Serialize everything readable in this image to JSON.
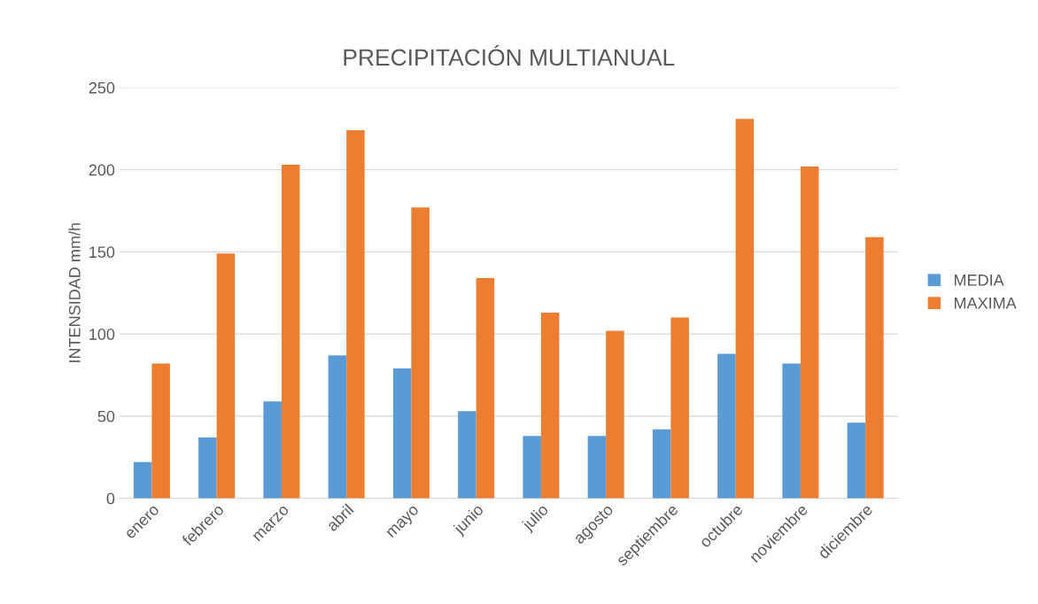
{
  "chart_data": {
    "type": "bar",
    "title": "PRECIPITACIÓN MULTIANUAL",
    "ylabel": "INTENSIDAD mm/h",
    "categories": [
      "enero",
      "febrero",
      "marzo",
      "abril",
      "mayo",
      "junio",
      "julio",
      "agosto",
      "septiembre",
      "octubre",
      "noviembre",
      "diciembre"
    ],
    "series": [
      {
        "name": "MEDIA",
        "color": "#5b9bd5",
        "values": [
          22,
          37,
          59,
          87,
          79,
          53,
          38,
          38,
          42,
          88,
          82,
          46
        ]
      },
      {
        "name": "MAXIMA",
        "color": "#ed7d31",
        "values": [
          82,
          149,
          203,
          224,
          177,
          134,
          113,
          102,
          110,
          231,
          202,
          159
        ]
      }
    ],
    "ylim": [
      0,
      250
    ],
    "yticks": [
      0,
      50,
      100,
      150,
      200,
      250
    ],
    "grid": "y",
    "legend": "right"
  }
}
